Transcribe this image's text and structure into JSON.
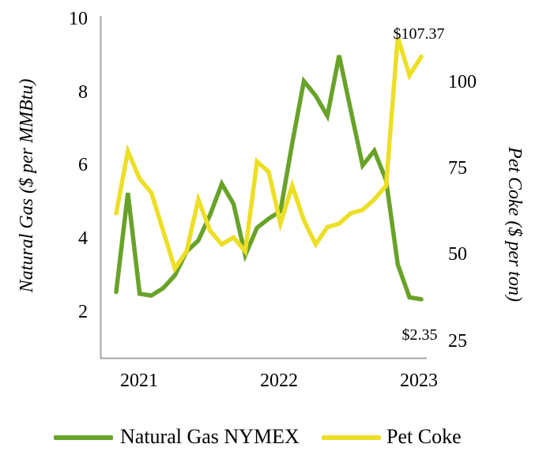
{
  "chart_data": {
    "type": "line",
    "title": "",
    "x_ticks": [
      "2021",
      "2022",
      "2023"
    ],
    "left_axis": {
      "label": "Natural Gas ($ per MMBtu)",
      "ticks": [
        2,
        4,
        6,
        8,
        10
      ],
      "unit": "$ per MMBtu"
    },
    "right_axis": {
      "label": "Pet Coke ($ per ton)",
      "ticks": [
        25,
        50,
        75,
        100
      ],
      "unit": "$ per ton"
    },
    "grid": "off",
    "legend_position": "bottom",
    "series": [
      {
        "name": "Natural Gas NYMEX",
        "axis": "left",
        "color": "#69A229",
        "values": [
          2.55,
          5.25,
          2.5,
          2.45,
          2.65,
          3.0,
          3.65,
          3.95,
          4.65,
          5.5,
          4.95,
          3.55,
          4.3,
          4.55,
          4.75,
          6.6,
          8.3,
          7.9,
          7.35,
          9.0,
          7.5,
          6.0,
          6.4,
          5.6,
          3.3,
          2.4,
          2.35
        ]
      },
      {
        "name": "Pet Coke",
        "axis": "right",
        "color": "#EDDF26",
        "values": [
          62,
          80,
          72,
          68,
          57,
          46,
          51,
          66,
          57,
          53,
          55,
          51,
          77,
          74,
          59,
          70,
          60,
          53,
          58,
          59,
          62,
          63,
          66,
          70,
          113,
          102,
          107.37
        ]
      }
    ],
    "annotations": [
      {
        "text": "$107.37",
        "series": "Pet Coke",
        "position": "last-point"
      },
      {
        "text": "$2.35",
        "series": "Natural Gas NYMEX",
        "position": "last-point"
      }
    ]
  },
  "legend": {
    "items": [
      {
        "label": "Natural Gas NYMEX",
        "color": "#69A229"
      },
      {
        "label": "Pet Coke",
        "color": "#EDDF26"
      }
    ]
  },
  "colors": {
    "axis_line": "#A6A6A6",
    "text": "#000000",
    "background": "#FFFFFF"
  }
}
